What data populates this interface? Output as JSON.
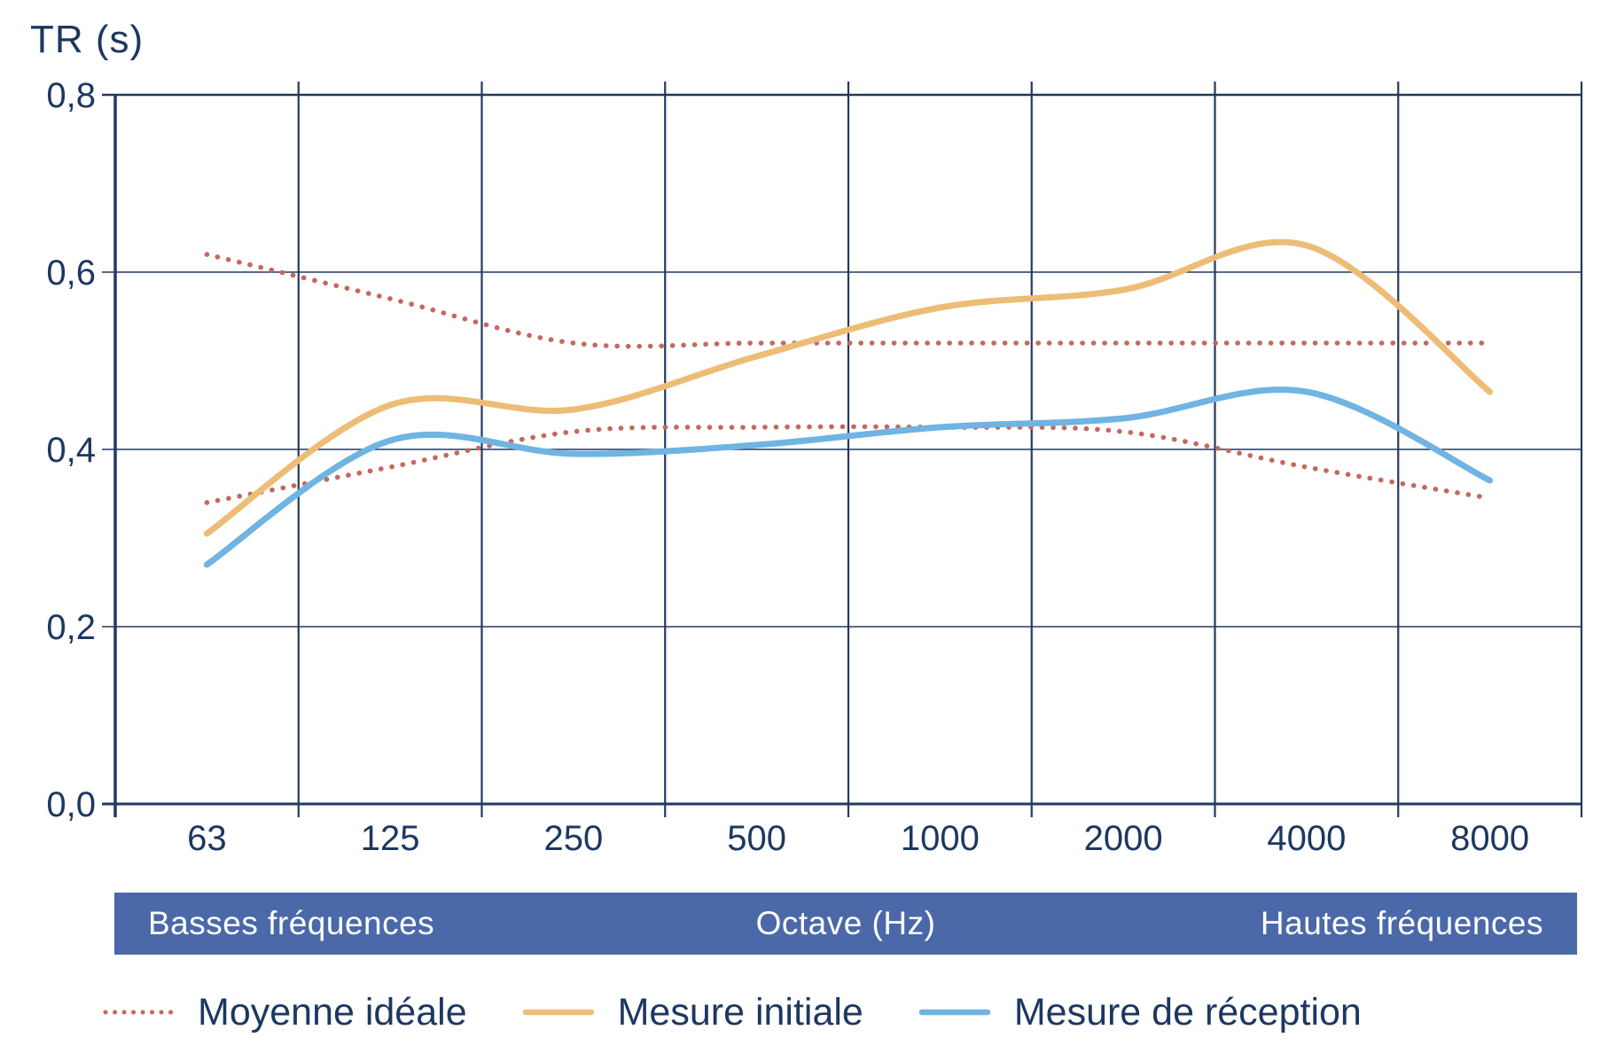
{
  "page_title": "Courbe de temps de réverbération par octave",
  "colors": {
    "text_navy": "#1d3860",
    "grid_navy": "#23395f",
    "banner_bg": "#4b69a8",
    "banner_text": "#ffffff",
    "ideal_red": "#c5685e",
    "initial_orange": "#edbd77",
    "reception_blue": "#6fb4e2"
  },
  "banner": {
    "left_label": "Basses fréquences",
    "center_label": "Octave (Hz)",
    "right_label": "Hautes fréquences"
  },
  "chart_data": {
    "type": "line",
    "title": "",
    "y_axis_title": "TR (s)",
    "x_axis_title": "Octave (Hz)",
    "xlabel": "Octave (Hz)",
    "ylabel": "TR (s)",
    "categories": [
      "63",
      "125",
      "250",
      "500",
      "1000",
      "2000",
      "4000",
      "8000"
    ],
    "y_ticks": [
      "0,0",
      "0,2",
      "0,4",
      "0,6",
      "0,8"
    ],
    "y_tick_values": [
      0,
      0.2,
      0.4,
      0.6,
      0.8
    ],
    "ylim": [
      0,
      0.8
    ],
    "grid": true,
    "legend_position": "bottom",
    "series": [
      {
        "name": "Moyenne idéale (limite haute)",
        "style": "dotted",
        "color": "#c5685e",
        "values": [
          0.62,
          0.57,
          0.52,
          0.52,
          0.52,
          0.52,
          0.52,
          0.52
        ]
      },
      {
        "name": "Moyenne idéale (limite basse)",
        "style": "dotted",
        "color": "#c5685e",
        "values": [
          0.34,
          0.38,
          0.42,
          0.425,
          0.425,
          0.42,
          0.38,
          0.345
        ]
      },
      {
        "name": "Mesure initiale",
        "style": "solid",
        "color": "#edbd77",
        "values": [
          0.305,
          0.45,
          0.445,
          0.505,
          0.56,
          0.58,
          0.63,
          0.465
        ]
      },
      {
        "name": "Mesure de réception",
        "style": "solid",
        "color": "#6fb4e2",
        "values": [
          0.27,
          0.41,
          0.395,
          0.405,
          0.425,
          0.435,
          0.465,
          0.365
        ]
      }
    ],
    "legend": [
      {
        "label": "Moyenne idéale",
        "style": "dotted",
        "color": "#c5685e"
      },
      {
        "label": "Mesure initiale",
        "style": "solid",
        "color": "#edbd77"
      },
      {
        "label": "Mesure de réception",
        "style": "solid",
        "color": "#6fb4e2"
      }
    ]
  }
}
